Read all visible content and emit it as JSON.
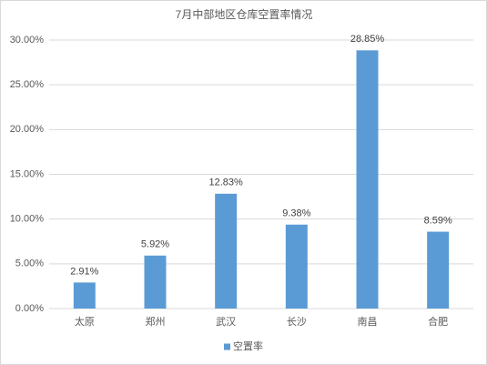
{
  "chart_data": {
    "type": "bar",
    "title": "7月中部地区仓库空置率情况",
    "categories": [
      "太原",
      "郑州",
      "武汉",
      "长沙",
      "南昌",
      "合肥"
    ],
    "series": [
      {
        "name": "空置率",
        "color": "#5b9bd5",
        "values": [
          2.91,
          5.92,
          12.83,
          9.38,
          28.85,
          8.59
        ],
        "value_labels": [
          "2.91%",
          "5.92%",
          "12.83%",
          "9.38%",
          "28.85%",
          "8.59%"
        ]
      }
    ],
    "ylim": [
      0,
      30
    ],
    "yticks": [
      {
        "value": 0,
        "label": "0.00%"
      },
      {
        "value": 5,
        "label": "5.00%"
      },
      {
        "value": 10,
        "label": "10.00%"
      },
      {
        "value": 15,
        "label": "15.00%"
      },
      {
        "value": 20,
        "label": "20.00%"
      },
      {
        "value": 25,
        "label": "25.00%"
      },
      {
        "value": 30,
        "label": "30.00%"
      }
    ],
    "grid": true,
    "legend": "bottom"
  }
}
